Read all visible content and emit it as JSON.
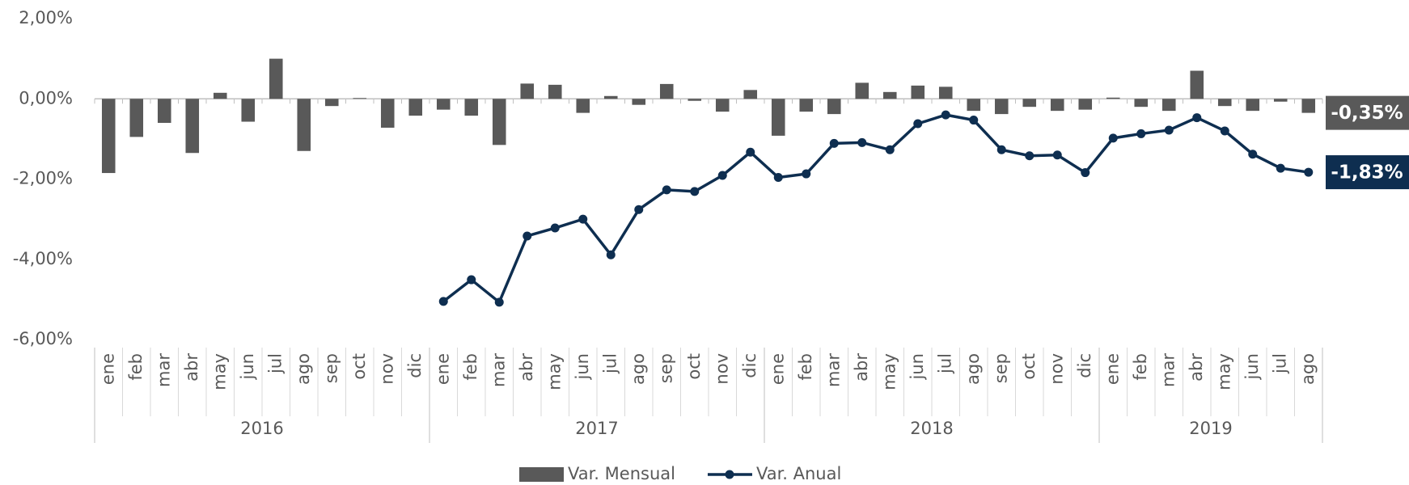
{
  "chart_data": {
    "type": "bar_line",
    "years": [
      {
        "label": "2016",
        "months": [
          "ene",
          "feb",
          "mar",
          "abr",
          "may",
          "jun",
          "jul",
          "ago",
          "sep",
          "oct",
          "nov",
          "dic"
        ]
      },
      {
        "label": "2017",
        "months": [
          "ene",
          "feb",
          "mar",
          "abr",
          "may",
          "jun",
          "jul",
          "ago",
          "sep",
          "oct",
          "nov",
          "dic"
        ]
      },
      {
        "label": "2018",
        "months": [
          "ene",
          "feb",
          "mar",
          "abr",
          "may",
          "jun",
          "jul",
          "ago",
          "sep",
          "oct",
          "nov",
          "dic"
        ]
      },
      {
        "label": "2019",
        "months": [
          "ene",
          "feb",
          "mar",
          "abr",
          "may",
          "jun",
          "jul",
          "ago"
        ]
      }
    ],
    "series": [
      {
        "name": "Var. Mensual",
        "type": "bar",
        "color": "#595959",
        "end_label": "-0,35%",
        "values": [
          -1.85,
          -0.95,
          -0.6,
          -1.35,
          0.15,
          -0.57,
          1.0,
          -1.3,
          -0.18,
          0.02,
          -0.72,
          -0.42,
          -0.27,
          -0.42,
          -1.15,
          0.38,
          0.35,
          -0.35,
          0.07,
          -0.15,
          0.37,
          -0.05,
          -0.32,
          0.22,
          -0.92,
          -0.32,
          -0.38,
          0.4,
          0.17,
          0.33,
          0.3,
          -0.3,
          -0.38,
          -0.2,
          -0.3,
          -0.27,
          0.03,
          -0.2,
          -0.3,
          0.7,
          -0.18,
          -0.3,
          -0.07,
          -0.35
        ]
      },
      {
        "name": "Var. Anual",
        "type": "line",
        "color": "#0e2e50",
        "end_label": "-1,83%",
        "values": [
          null,
          null,
          null,
          null,
          null,
          null,
          null,
          null,
          null,
          null,
          null,
          null,
          -5.05,
          -4.51,
          -5.07,
          -3.42,
          -3.22,
          -3.0,
          -3.89,
          -2.76,
          -2.27,
          -2.31,
          -1.91,
          -1.33,
          -1.96,
          -1.87,
          -1.11,
          -1.09,
          -1.27,
          -0.62,
          -0.4,
          -0.53,
          -1.27,
          -1.42,
          -1.4,
          -1.84,
          -0.98,
          -0.87,
          -0.78,
          -0.47,
          -0.8,
          -1.38,
          -1.73,
          -1.83
        ]
      }
    ],
    "ylim": [
      -6,
      2
    ],
    "yticks": [
      {
        "value": -6,
        "label": "-6,00%"
      },
      {
        "value": -4,
        "label": "-4,00%"
      },
      {
        "value": -2,
        "label": "-2,00%"
      },
      {
        "value": 0,
        "label": "0,00%"
      },
      {
        "value": 2,
        "label": "2,00%"
      }
    ],
    "grid": false,
    "legend": "bottom"
  }
}
